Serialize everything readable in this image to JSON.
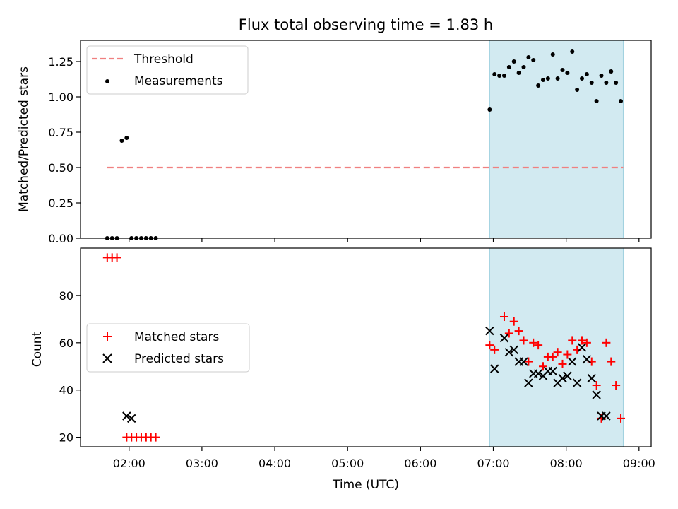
{
  "chart_data": [
    {
      "type": "scatter",
      "title": "Flux total observing time = 1.83 h",
      "ylabel": "Matched/Predicted stars",
      "xlabel": "",
      "xlim": [
        "01:20",
        "09:10"
      ],
      "ylim": [
        0,
        1.4
      ],
      "xticks": [
        "02:00",
        "03:00",
        "04:00",
        "05:00",
        "06:00",
        "07:00",
        "08:00",
        "09:00"
      ],
      "yticks": [
        "0.00",
        "0.25",
        "0.50",
        "0.75",
        "1.00",
        "1.25"
      ],
      "shaded_span": {
        "start": "06:57",
        "end": "08:47",
        "color": "#add8e6"
      },
      "legend": "top-left",
      "series": [
        {
          "name": "Threshold",
          "kind": "line",
          "style": "dashed",
          "color": "#f08080",
          "x": [
            "01:42",
            "08:47"
          ],
          "y": [
            0.5,
            0.5
          ]
        },
        {
          "name": "Measurements",
          "kind": "scatter",
          "marker": "dot",
          "color": "#000000",
          "x": [
            "01:42",
            "01:46",
            "01:50",
            "01:54",
            "01:58",
            "02:02",
            "02:06",
            "02:10",
            "02:14",
            "02:18",
            "02:22",
            "06:57",
            "07:01",
            "07:05",
            "07:09",
            "07:13",
            "07:17",
            "07:21",
            "07:25",
            "07:29",
            "07:33",
            "07:37",
            "07:41",
            "07:45",
            "07:49",
            "07:53",
            "07:57",
            "08:01",
            "08:05",
            "08:09",
            "08:13",
            "08:17",
            "08:21",
            "08:25",
            "08:29",
            "08:33",
            "08:37",
            "08:41",
            "08:45"
          ],
          "y": [
            0,
            0,
            0,
            0.69,
            0.71,
            0,
            0,
            0,
            0,
            0,
            0,
            0.91,
            1.16,
            1.15,
            1.15,
            1.21,
            1.25,
            1.17,
            1.21,
            1.28,
            1.26,
            1.08,
            1.12,
            1.13,
            1.3,
            1.13,
            1.19,
            1.17,
            1.32,
            1.05,
            1.13,
            1.16,
            1.1,
            0.97,
            1.15,
            1.1,
            1.18,
            1.1,
            0.97
          ]
        }
      ]
    },
    {
      "type": "scatter",
      "title": "",
      "ylabel": "Count",
      "xlabel": "Time (UTC)",
      "xlim": [
        "01:20",
        "09:10"
      ],
      "ylim": [
        16,
        100
      ],
      "xticks": [
        "02:00",
        "03:00",
        "04:00",
        "05:00",
        "06:00",
        "07:00",
        "08:00",
        "09:00"
      ],
      "yticks": [
        "20",
        "40",
        "60",
        "80"
      ],
      "shaded_span": {
        "start": "06:57",
        "end": "08:47",
        "color": "#add8e6"
      },
      "legend": "center-left",
      "series": [
        {
          "name": "Matched stars",
          "kind": "scatter",
          "marker": "plus",
          "color": "#ff0000",
          "x": [
            "01:42",
            "01:46",
            "01:50",
            "01:58",
            "02:02",
            "02:06",
            "02:10",
            "02:14",
            "02:18",
            "02:22",
            "06:57",
            "07:01",
            "07:09",
            "07:13",
            "07:17",
            "07:21",
            "07:25",
            "07:29",
            "07:33",
            "07:37",
            "07:41",
            "07:45",
            "07:49",
            "07:53",
            "07:57",
            "08:01",
            "08:05",
            "08:09",
            "08:13",
            "08:17",
            "08:21",
            "08:25",
            "08:29",
            "08:33",
            "08:37",
            "08:41",
            "08:45"
          ],
          "y": [
            96,
            96,
            96,
            20,
            20,
            20,
            20,
            20,
            20,
            20,
            59,
            57,
            71,
            64,
            69,
            65,
            61,
            52,
            60,
            59,
            50,
            54,
            54,
            56,
            51,
            55,
            61,
            57,
            61,
            60,
            52,
            42,
            28,
            60,
            52,
            42,
            28
          ]
        },
        {
          "name": "Predicted stars",
          "kind": "scatter",
          "marker": "x",
          "color": "#000000",
          "x": [
            "01:58",
            "02:02",
            "06:57",
            "07:01",
            "07:09",
            "07:13",
            "07:17",
            "07:21",
            "07:25",
            "07:29",
            "07:33",
            "07:37",
            "07:41",
            "07:45",
            "07:49",
            "07:53",
            "07:57",
            "08:01",
            "08:05",
            "08:09",
            "08:13",
            "08:17",
            "08:21",
            "08:25",
            "08:29",
            "08:33"
          ],
          "y": [
            29,
            28,
            65,
            49,
            62,
            56,
            57,
            52,
            52,
            43,
            47,
            47,
            46,
            48,
            48,
            43,
            45,
            46,
            52,
            43,
            58,
            53,
            45,
            38,
            29,
            29
          ]
        }
      ]
    }
  ]
}
